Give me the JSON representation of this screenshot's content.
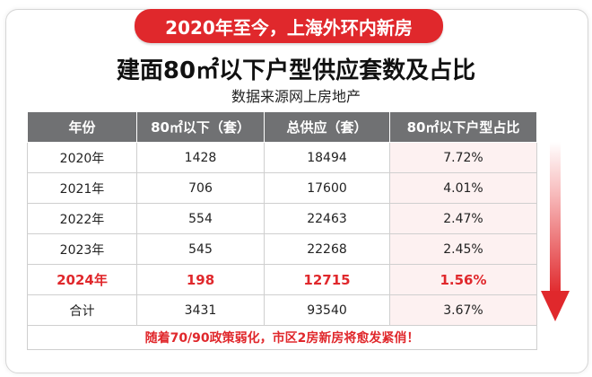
{
  "banner": "2020年至今，上海外环内新房",
  "title": "建面80㎡以下户型供应套数及占比",
  "source": "数据来源网上房地产",
  "table": {
    "headers": [
      "年份",
      "80㎡以下（套）",
      "总供应（套）",
      "80㎡以下户型占比"
    ],
    "rows": [
      [
        "2020年",
        "1428",
        "18494",
        "7.72%"
      ],
      [
        "2021年",
        "706",
        "17600",
        "4.01%"
      ],
      [
        "2022年",
        "554",
        "22463",
        "2.47%"
      ],
      [
        "2023年",
        "545",
        "22268",
        "2.45%"
      ],
      [
        "2024年",
        "198",
        "12715",
        "1.56%"
      ],
      [
        "合计",
        "3431",
        "93540",
        "3.67%"
      ]
    ],
    "highlight_row": "2024年"
  },
  "footnote": "随着70/90政策弱化，市区2房新房将愈发紧俏！",
  "colors": {
    "accent": "#e0282c",
    "header_bg": "#707173",
    "share_col_bg": "#fdf1f1"
  }
}
